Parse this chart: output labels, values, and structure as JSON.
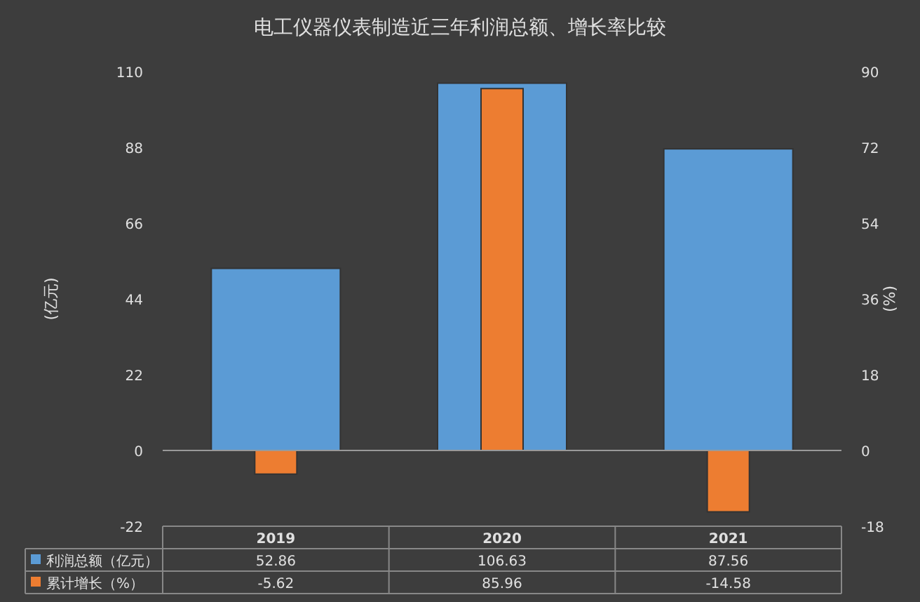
{
  "chart_data": {
    "type": "bar",
    "title": "电工仪器仪表制造近三年利润总额、增长率比较",
    "ylabel": "(亿元)",
    "y2label": "(%)",
    "categories": [
      "2019",
      "2020",
      "2021"
    ],
    "series": [
      {
        "name": "利润总额（亿元）",
        "color": "#5b9bd5",
        "values": [
          52.86,
          106.63,
          87.56
        ]
      },
      {
        "name": "累计增长（%）",
        "color": "#ed7d31",
        "values": [
          -5.62,
          85.96,
          -14.58
        ],
        "axis": "y2"
      }
    ],
    "ylim": [
      -22,
      110
    ],
    "yticks": [
      -22,
      0,
      22,
      44,
      66,
      88,
      110
    ],
    "y2lim": [
      -18,
      90
    ],
    "y2ticks": [
      -18,
      0,
      18,
      36,
      54,
      72,
      90
    ],
    "data_labels": true,
    "legend": "bottom"
  }
}
